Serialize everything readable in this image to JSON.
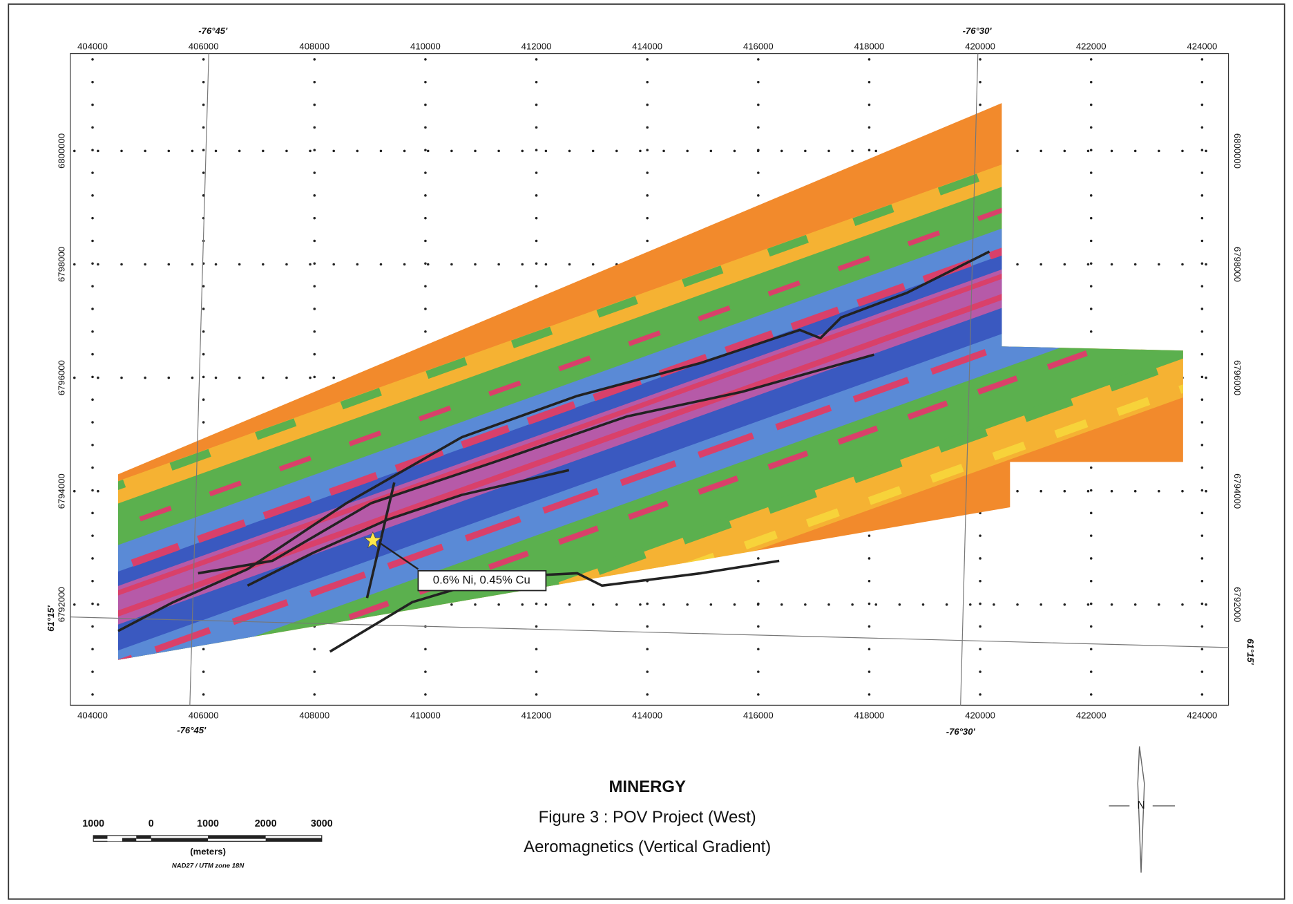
{
  "map": {
    "title": "MINERGY",
    "subtitle": "Figure 3 : POV Project (West)",
    "caption": "Aeromagnetics (Vertical Gradient)",
    "x_ticks": [
      404000,
      406000,
      408000,
      410000,
      412000,
      414000,
      416000,
      418000,
      420000,
      422000,
      424000
    ],
    "y_ticks": [
      6792000,
      6794000,
      6796000,
      6798000,
      6800000
    ],
    "graticule": {
      "longitudes": [
        "-76°45'",
        "-76°30'"
      ],
      "latitude": "61°15'"
    },
    "annotation": "0.6% Ni, 0.45% Cu",
    "scale_bar": {
      "labels": [
        "1000",
        "0",
        "1000",
        "2000",
        "3000"
      ],
      "unit": "(meters)",
      "projection": "NAD27 / UTM zone 18N"
    },
    "north_label": "N"
  }
}
